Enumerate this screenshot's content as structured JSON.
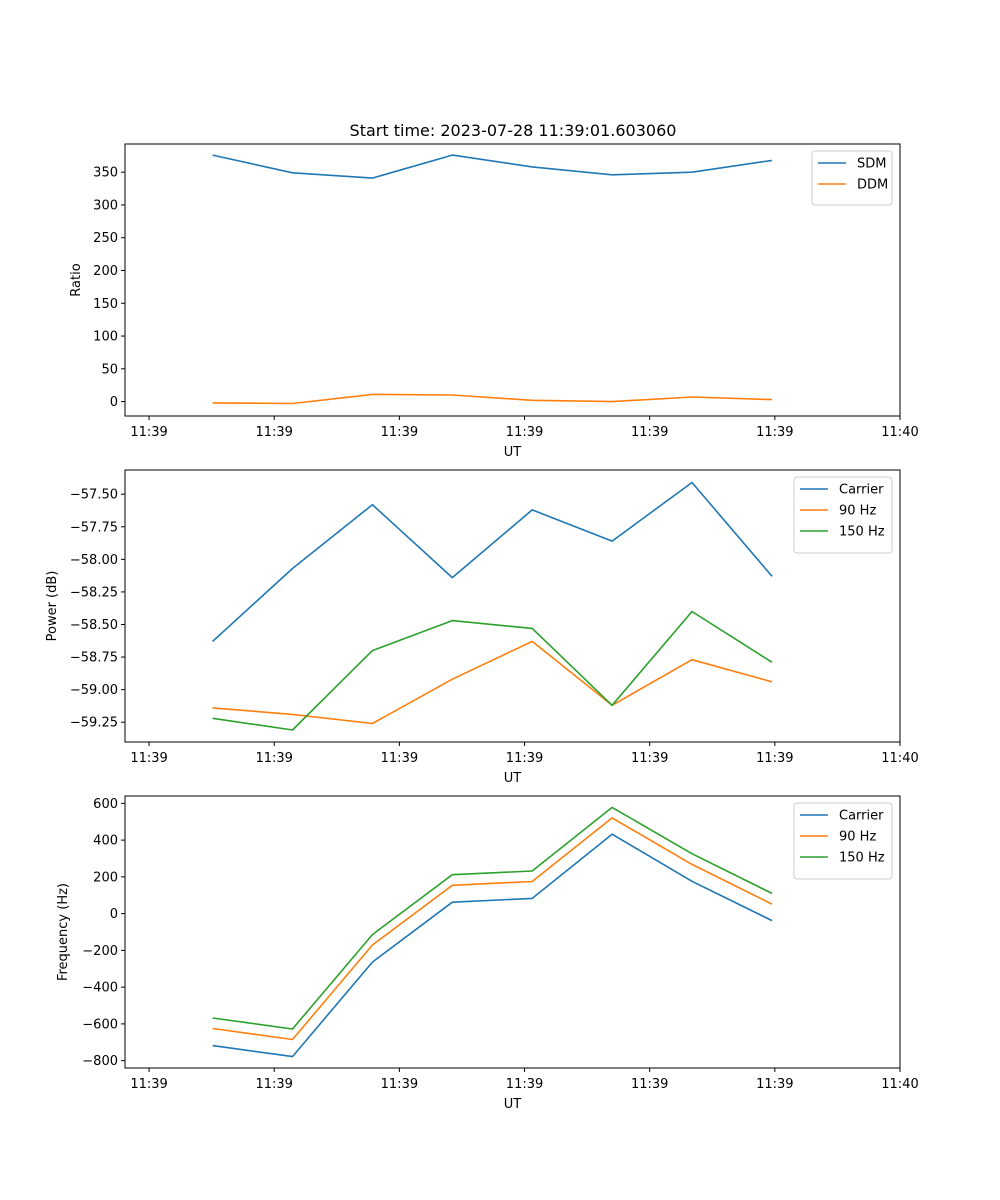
{
  "figure_title": "Start time: 2023-07-28 11:39:01.603060",
  "x_tick_labels": [
    "11:39",
    "11:39",
    "11:39",
    "11:39",
    "11:39",
    "11:39",
    "11:40"
  ],
  "chart_data": [
    {
      "type": "line",
      "title": "Start time: 2023-07-28 11:39:01.603060",
      "xlabel": "UT",
      "ylabel": "Ratio",
      "x": [
        1.32,
        2.98,
        4.64,
        6.3,
        7.96,
        9.62,
        11.28,
        12.94
      ],
      "xlim": [
        -0.5,
        15.6
      ],
      "x_ticks": [
        0,
        2.6,
        5.2,
        7.8,
        10.4,
        13.0,
        15.6
      ],
      "x_tick_labels": [
        "11:39",
        "11:39",
        "11:39",
        "11:39",
        "11:39",
        "11:39",
        "11:40"
      ],
      "ylim": [
        -22,
        393
      ],
      "y_ticks": [
        0,
        50,
        100,
        150,
        200,
        250,
        300,
        350
      ],
      "y_tick_labels": [
        "0",
        "50",
        "100",
        "150",
        "200",
        "250",
        "300",
        "350"
      ],
      "legend": "top-right",
      "series": [
        {
          "name": "SDM",
          "color": "#1f77b4",
          "values": [
            376,
            349,
            341,
            376,
            358,
            346,
            350,
            368
          ]
        },
        {
          "name": "DDM",
          "color": "#ff7f0e",
          "values": [
            -2,
            -3,
            11,
            10,
            2,
            0,
            7,
            3
          ]
        }
      ]
    },
    {
      "type": "line",
      "title": "",
      "xlabel": "UT",
      "ylabel": "Power (dB)",
      "x": [
        1.32,
        2.98,
        4.64,
        6.3,
        7.96,
        9.62,
        11.28,
        12.94
      ],
      "xlim": [
        -0.5,
        15.6
      ],
      "x_ticks": [
        0,
        2.6,
        5.2,
        7.8,
        10.4,
        13.0,
        15.6
      ],
      "x_tick_labels": [
        "11:39",
        "11:39",
        "11:39",
        "11:39",
        "11:39",
        "11:39",
        "11:40"
      ],
      "ylim": [
        -59.402,
        -57.314
      ],
      "y_ticks": [
        -59.25,
        -59.0,
        -58.75,
        -58.5,
        -58.25,
        -58.0,
        -57.75,
        -57.5
      ],
      "y_tick_labels": [
        "−59.25",
        "−59.00",
        "−58.75",
        "−58.50",
        "−58.25",
        "−58.00",
        "−57.75",
        "−57.50"
      ],
      "legend": "top-right",
      "series": [
        {
          "name": "Carrier",
          "color": "#1f77b4",
          "values": [
            -58.63,
            -58.07,
            -57.58,
            -58.14,
            -57.62,
            -57.86,
            -57.41,
            -58.13
          ]
        },
        {
          "name": "90 Hz",
          "color": "#ff7f0e",
          "values": [
            -59.14,
            -59.19,
            -59.26,
            -58.92,
            -58.63,
            -59.12,
            -58.77,
            -58.94
          ]
        },
        {
          "name": "150 Hz",
          "color": "#2ca02c",
          "values": [
            -59.22,
            -59.31,
            -58.7,
            -58.47,
            -58.53,
            -59.12,
            -58.4,
            -58.79
          ]
        }
      ]
    },
    {
      "type": "line",
      "title": "",
      "xlabel": "UT",
      "ylabel": "Frequency (Hz)",
      "x": [
        1.32,
        2.98,
        4.64,
        6.3,
        7.96,
        9.62,
        11.28,
        12.94
      ],
      "xlim": [
        -0.5,
        15.6
      ],
      "x_ticks": [
        0,
        2.6,
        5.2,
        7.8,
        10.4,
        13.0,
        15.6
      ],
      "x_tick_labels": [
        "11:39",
        "11:39",
        "11:39",
        "11:39",
        "11:39",
        "11:39",
        "11:40"
      ],
      "ylim": [
        -840,
        640
      ],
      "y_ticks": [
        -800,
        -600,
        -400,
        -200,
        0,
        200,
        400,
        600
      ],
      "y_tick_labels": [
        "−800",
        "−600",
        "−400",
        "−200",
        "0",
        "200",
        "400",
        "600"
      ],
      "legend": "top-right",
      "series": [
        {
          "name": "Carrier",
          "color": "#1f77b4",
          "values": [
            -718,
            -778,
            -264,
            62,
            83,
            432,
            176,
            -38
          ]
        },
        {
          "name": "90 Hz",
          "color": "#ff7f0e",
          "values": [
            -625,
            -685,
            -171,
            154,
            175,
            521,
            268,
            52
          ]
        },
        {
          "name": "150 Hz",
          "color": "#2ca02c",
          "values": [
            -568,
            -628,
            -114,
            212,
            232,
            578,
            326,
            110
          ]
        }
      ]
    }
  ]
}
